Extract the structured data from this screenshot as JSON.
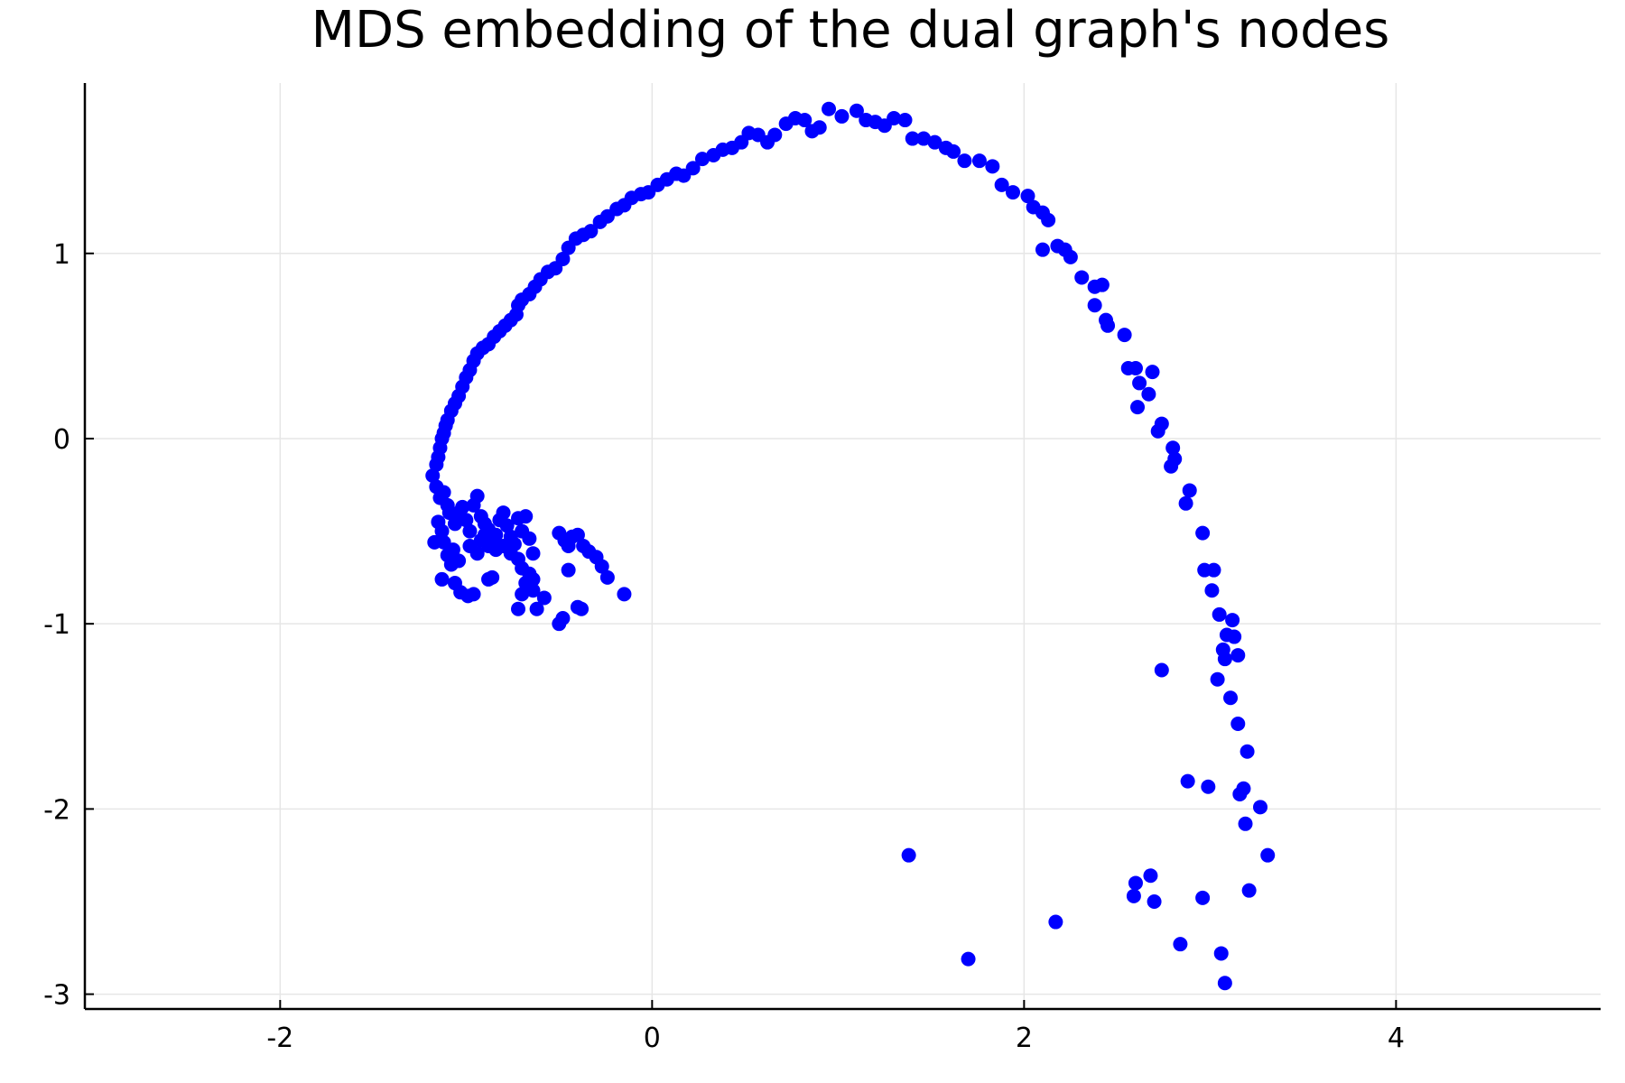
{
  "chart_data": {
    "type": "scatter",
    "title": "MDS embedding of the dual graph's nodes",
    "xlabel": "",
    "ylabel": "",
    "xlim": [
      -3.05,
      5.1
    ],
    "ylim": [
      -3.08,
      1.92
    ],
    "xticks": [
      -2,
      0,
      2,
      4
    ],
    "yticks": [
      1,
      0,
      -1,
      -2,
      -3
    ],
    "grid": true,
    "legend": "none",
    "marker_color": "#0000ff",
    "series": [
      {
        "points": [
          [
            -1.18,
            -0.2
          ],
          [
            -1.16,
            -0.14
          ],
          [
            -1.15,
            -0.1
          ],
          [
            -1.14,
            -0.05
          ],
          [
            -1.13,
            0.0
          ],
          [
            -1.12,
            0.03
          ],
          [
            -1.11,
            0.07
          ],
          [
            -1.1,
            0.1
          ],
          [
            -1.08,
            0.15
          ],
          [
            -1.06,
            0.19
          ],
          [
            -1.04,
            0.23
          ],
          [
            -1.02,
            0.28
          ],
          [
            -1.0,
            0.33
          ],
          [
            -0.98,
            0.37
          ],
          [
            -0.96,
            0.42
          ],
          [
            -0.94,
            0.46
          ],
          [
            -0.91,
            0.49
          ],
          [
            -0.88,
            0.51
          ],
          [
            -0.85,
            0.55
          ],
          [
            -0.82,
            0.58
          ],
          [
            -0.79,
            0.61
          ],
          [
            -0.76,
            0.64
          ],
          [
            -0.73,
            0.67
          ],
          [
            -0.72,
            0.72
          ],
          [
            -0.7,
            0.75
          ],
          [
            -0.66,
            0.78
          ],
          [
            -0.63,
            0.82
          ],
          [
            -0.6,
            0.86
          ],
          [
            -0.56,
            0.9
          ],
          [
            -0.52,
            0.92
          ],
          [
            -0.48,
            0.97
          ],
          [
            -0.45,
            1.03
          ],
          [
            -0.41,
            1.08
          ],
          [
            -0.37,
            1.1
          ],
          [
            -0.33,
            1.12
          ],
          [
            -0.28,
            1.17
          ],
          [
            -0.24,
            1.2
          ],
          [
            -0.19,
            1.24
          ],
          [
            -0.15,
            1.26
          ],
          [
            -0.11,
            1.3
          ],
          [
            -0.06,
            1.32
          ],
          [
            -0.02,
            1.33
          ],
          [
            0.03,
            1.37
          ],
          [
            0.08,
            1.4
          ],
          [
            0.13,
            1.43
          ],
          [
            0.17,
            1.42
          ],
          [
            0.22,
            1.46
          ],
          [
            0.27,
            1.51
          ],
          [
            0.33,
            1.53
          ],
          [
            0.38,
            1.56
          ],
          [
            0.43,
            1.57
          ],
          [
            0.48,
            1.6
          ],
          [
            0.52,
            1.65
          ],
          [
            0.57,
            1.64
          ],
          [
            0.62,
            1.6
          ],
          [
            0.66,
            1.64
          ],
          [
            0.72,
            1.7
          ],
          [
            0.77,
            1.73
          ],
          [
            0.82,
            1.72
          ],
          [
            0.86,
            1.66
          ],
          [
            0.9,
            1.68
          ],
          [
            0.95,
            1.78
          ],
          [
            1.02,
            1.74
          ],
          [
            1.1,
            1.77
          ],
          [
            1.15,
            1.72
          ],
          [
            1.2,
            1.71
          ],
          [
            1.25,
            1.69
          ],
          [
            1.3,
            1.73
          ],
          [
            1.36,
            1.72
          ],
          [
            1.4,
            1.62
          ],
          [
            1.46,
            1.62
          ],
          [
            1.52,
            1.6
          ],
          [
            1.58,
            1.57
          ],
          [
            1.62,
            1.55
          ],
          [
            1.68,
            1.5
          ],
          [
            1.76,
            1.5
          ],
          [
            1.83,
            1.47
          ],
          [
            1.88,
            1.37
          ],
          [
            1.94,
            1.33
          ],
          [
            2.02,
            1.31
          ],
          [
            2.05,
            1.25
          ],
          [
            2.1,
            1.22
          ],
          [
            2.13,
            1.18
          ],
          [
            2.1,
            1.02
          ],
          [
            2.18,
            1.04
          ],
          [
            2.22,
            1.02
          ],
          [
            2.25,
            0.98
          ],
          [
            2.31,
            0.87
          ],
          [
            2.38,
            0.82
          ],
          [
            2.42,
            0.83
          ],
          [
            2.38,
            0.72
          ],
          [
            2.44,
            0.64
          ],
          [
            2.45,
            0.61
          ],
          [
            2.54,
            0.56
          ],
          [
            2.56,
            0.38
          ],
          [
            2.6,
            0.38
          ],
          [
            2.62,
            0.3
          ],
          [
            2.67,
            0.24
          ],
          [
            2.69,
            0.36
          ],
          [
            2.61,
            0.17
          ],
          [
            2.72,
            0.04
          ],
          [
            2.74,
            0.08
          ],
          [
            2.8,
            -0.05
          ],
          [
            2.81,
            -0.11
          ],
          [
            2.79,
            -0.15
          ],
          [
            2.87,
            -0.35
          ],
          [
            2.89,
            -0.28
          ],
          [
            2.96,
            -0.51
          ],
          [
            2.97,
            -0.71
          ],
          [
            3.02,
            -0.71
          ],
          [
            3.01,
            -0.82
          ],
          [
            3.05,
            -0.95
          ],
          [
            3.09,
            -1.06
          ],
          [
            3.12,
            -0.98
          ],
          [
            3.13,
            -1.07
          ],
          [
            3.07,
            -1.14
          ],
          [
            3.08,
            -1.19
          ],
          [
            3.15,
            -1.17
          ],
          [
            3.04,
            -1.3
          ],
          [
            3.11,
            -1.4
          ],
          [
            3.15,
            -1.54
          ],
          [
            3.2,
            -1.69
          ],
          [
            3.16,
            -1.92
          ],
          [
            3.18,
            -1.89
          ],
          [
            3.27,
            -1.99
          ],
          [
            3.19,
            -2.08
          ],
          [
            3.31,
            -2.25
          ],
          [
            3.21,
            -2.44
          ],
          [
            3.06,
            -2.78
          ],
          [
            3.08,
            -2.94
          ],
          [
            2.96,
            -2.48
          ],
          [
            2.84,
            -2.73
          ],
          [
            2.88,
            -1.85
          ],
          [
            2.99,
            -1.88
          ],
          [
            2.74,
            -1.25
          ],
          [
            2.68,
            -2.36
          ],
          [
            2.6,
            -2.4
          ],
          [
            2.59,
            -2.47
          ],
          [
            2.7,
            -2.5
          ],
          [
            2.17,
            -2.61
          ],
          [
            1.7,
            -2.81
          ],
          [
            1.38,
            -2.25
          ],
          [
            -1.16,
            -0.26
          ],
          [
            -1.14,
            -0.32
          ],
          [
            -1.12,
            -0.29
          ],
          [
            -1.1,
            -0.36
          ],
          [
            -1.09,
            -0.4
          ],
          [
            -1.15,
            -0.45
          ],
          [
            -1.13,
            -0.5
          ],
          [
            -1.17,
            -0.56
          ],
          [
            -1.12,
            -0.56
          ],
          [
            -1.1,
            -0.63
          ],
          [
            -1.07,
            -0.6
          ],
          [
            -1.06,
            -0.46
          ],
          [
            -1.04,
            -0.4
          ],
          [
            -1.02,
            -0.37
          ],
          [
            -1.0,
            -0.44
          ],
          [
            -0.98,
            -0.5
          ],
          [
            -0.96,
            -0.36
          ],
          [
            -0.94,
            -0.31
          ],
          [
            -0.92,
            -0.42
          ],
          [
            -0.9,
            -0.52
          ],
          [
            -0.88,
            -0.49
          ],
          [
            -0.86,
            -0.55
          ],
          [
            -0.84,
            -0.6
          ],
          [
            -0.82,
            -0.44
          ],
          [
            -0.8,
            -0.4
          ],
          [
            -0.78,
            -0.47
          ],
          [
            -0.76,
            -0.53
          ],
          [
            -0.74,
            -0.57
          ],
          [
            -0.72,
            -0.43
          ],
          [
            -0.7,
            -0.5
          ],
          [
            -0.68,
            -0.42
          ],
          [
            -0.66,
            -0.54
          ],
          [
            -0.64,
            -0.62
          ],
          [
            -0.72,
            -0.65
          ],
          [
            -0.7,
            -0.7
          ],
          [
            -0.66,
            -0.73
          ],
          [
            -0.64,
            -0.76
          ],
          [
            -0.68,
            -0.78
          ],
          [
            -0.7,
            -0.84
          ],
          [
            -0.64,
            -0.82
          ],
          [
            -0.58,
            -0.86
          ],
          [
            -0.62,
            -0.92
          ],
          [
            -0.72,
            -0.92
          ],
          [
            -0.86,
            -0.75
          ],
          [
            -0.88,
            -0.76
          ],
          [
            -0.96,
            -0.84
          ],
          [
            -0.99,
            -0.85
          ],
          [
            -1.03,
            -0.83
          ],
          [
            -1.06,
            -0.78
          ],
          [
            -1.13,
            -0.76
          ],
          [
            -1.08,
            -0.68
          ],
          [
            -1.04,
            -0.66
          ],
          [
            -0.98,
            -0.58
          ],
          [
            -0.94,
            -0.62
          ],
          [
            -0.92,
            -0.55
          ],
          [
            -0.9,
            -0.46
          ],
          [
            -0.88,
            -0.58
          ],
          [
            -0.84,
            -0.52
          ],
          [
            -0.8,
            -0.58
          ],
          [
            -0.76,
            -0.62
          ],
          [
            -0.5,
            -0.51
          ],
          [
            -0.47,
            -0.55
          ],
          [
            -0.45,
            -0.58
          ],
          [
            -0.43,
            -0.53
          ],
          [
            -0.4,
            -0.52
          ],
          [
            -0.37,
            -0.58
          ],
          [
            -0.34,
            -0.61
          ],
          [
            -0.3,
            -0.64
          ],
          [
            -0.27,
            -0.69
          ],
          [
            -0.24,
            -0.75
          ],
          [
            -0.15,
            -0.84
          ],
          [
            -0.45,
            -0.71
          ],
          [
            -0.4,
            -0.91
          ],
          [
            -0.5,
            -1.0
          ],
          [
            -0.48,
            -0.97
          ],
          [
            -0.38,
            -0.92
          ]
        ]
      }
    ]
  }
}
